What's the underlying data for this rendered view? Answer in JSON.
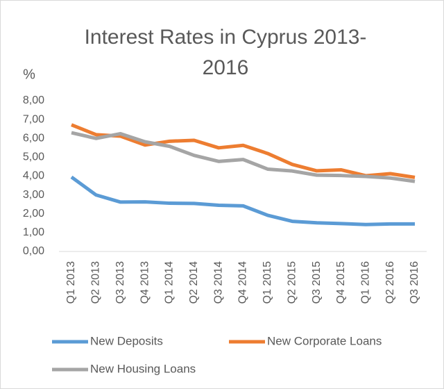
{
  "chart_data": {
    "type": "line",
    "title": "Interest Rates in Cyprus 2013-2016",
    "y_label": "%",
    "categories": [
      "Q1 2013",
      "Q2 2013",
      "Q3 2013",
      "Q4 2013",
      "Q1 2014",
      "Q2 2014",
      "Q3 2014",
      "Q4 2014",
      "Q1 2015",
      "Q2 2015",
      "Q3 2015",
      "Q4 2015",
      "Q1 2016",
      "Q2 2016",
      "Q3 2016"
    ],
    "series": [
      {
        "name": "New Deposits",
        "color": "#5b9bd5",
        "values": [
          3.95,
          3.0,
          2.62,
          2.63,
          2.56,
          2.55,
          2.45,
          2.42,
          1.92,
          1.6,
          1.52,
          1.48,
          1.43,
          1.46,
          1.46
        ]
      },
      {
        "name": "New Corporate Loans",
        "color": "#ed7d31",
        "values": [
          6.72,
          6.2,
          6.12,
          5.65,
          5.85,
          5.9,
          5.5,
          5.63,
          5.2,
          4.62,
          4.28,
          4.33,
          4.02,
          4.13,
          3.93
        ]
      },
      {
        "name": "New Housing Loans",
        "color": "#a5a5a5",
        "values": [
          6.3,
          6.0,
          6.25,
          5.82,
          5.58,
          5.1,
          4.78,
          4.88,
          4.37,
          4.27,
          4.05,
          4.03,
          3.98,
          3.9,
          3.72
        ]
      }
    ],
    "ylim": [
      0,
      8
    ],
    "yticks": [
      {
        "value": 0,
        "label": "0,00"
      },
      {
        "value": 1,
        "label": "1,00"
      },
      {
        "value": 2,
        "label": "2,00"
      },
      {
        "value": 3,
        "label": "3,00"
      },
      {
        "value": 4,
        "label": "4,00"
      },
      {
        "value": 5,
        "label": "5,00"
      },
      {
        "value": 6,
        "label": "6,00"
      },
      {
        "value": 7,
        "label": "7,00"
      },
      {
        "value": 8,
        "label": "8,00"
      }
    ],
    "grid": false,
    "legend": "bottom"
  }
}
